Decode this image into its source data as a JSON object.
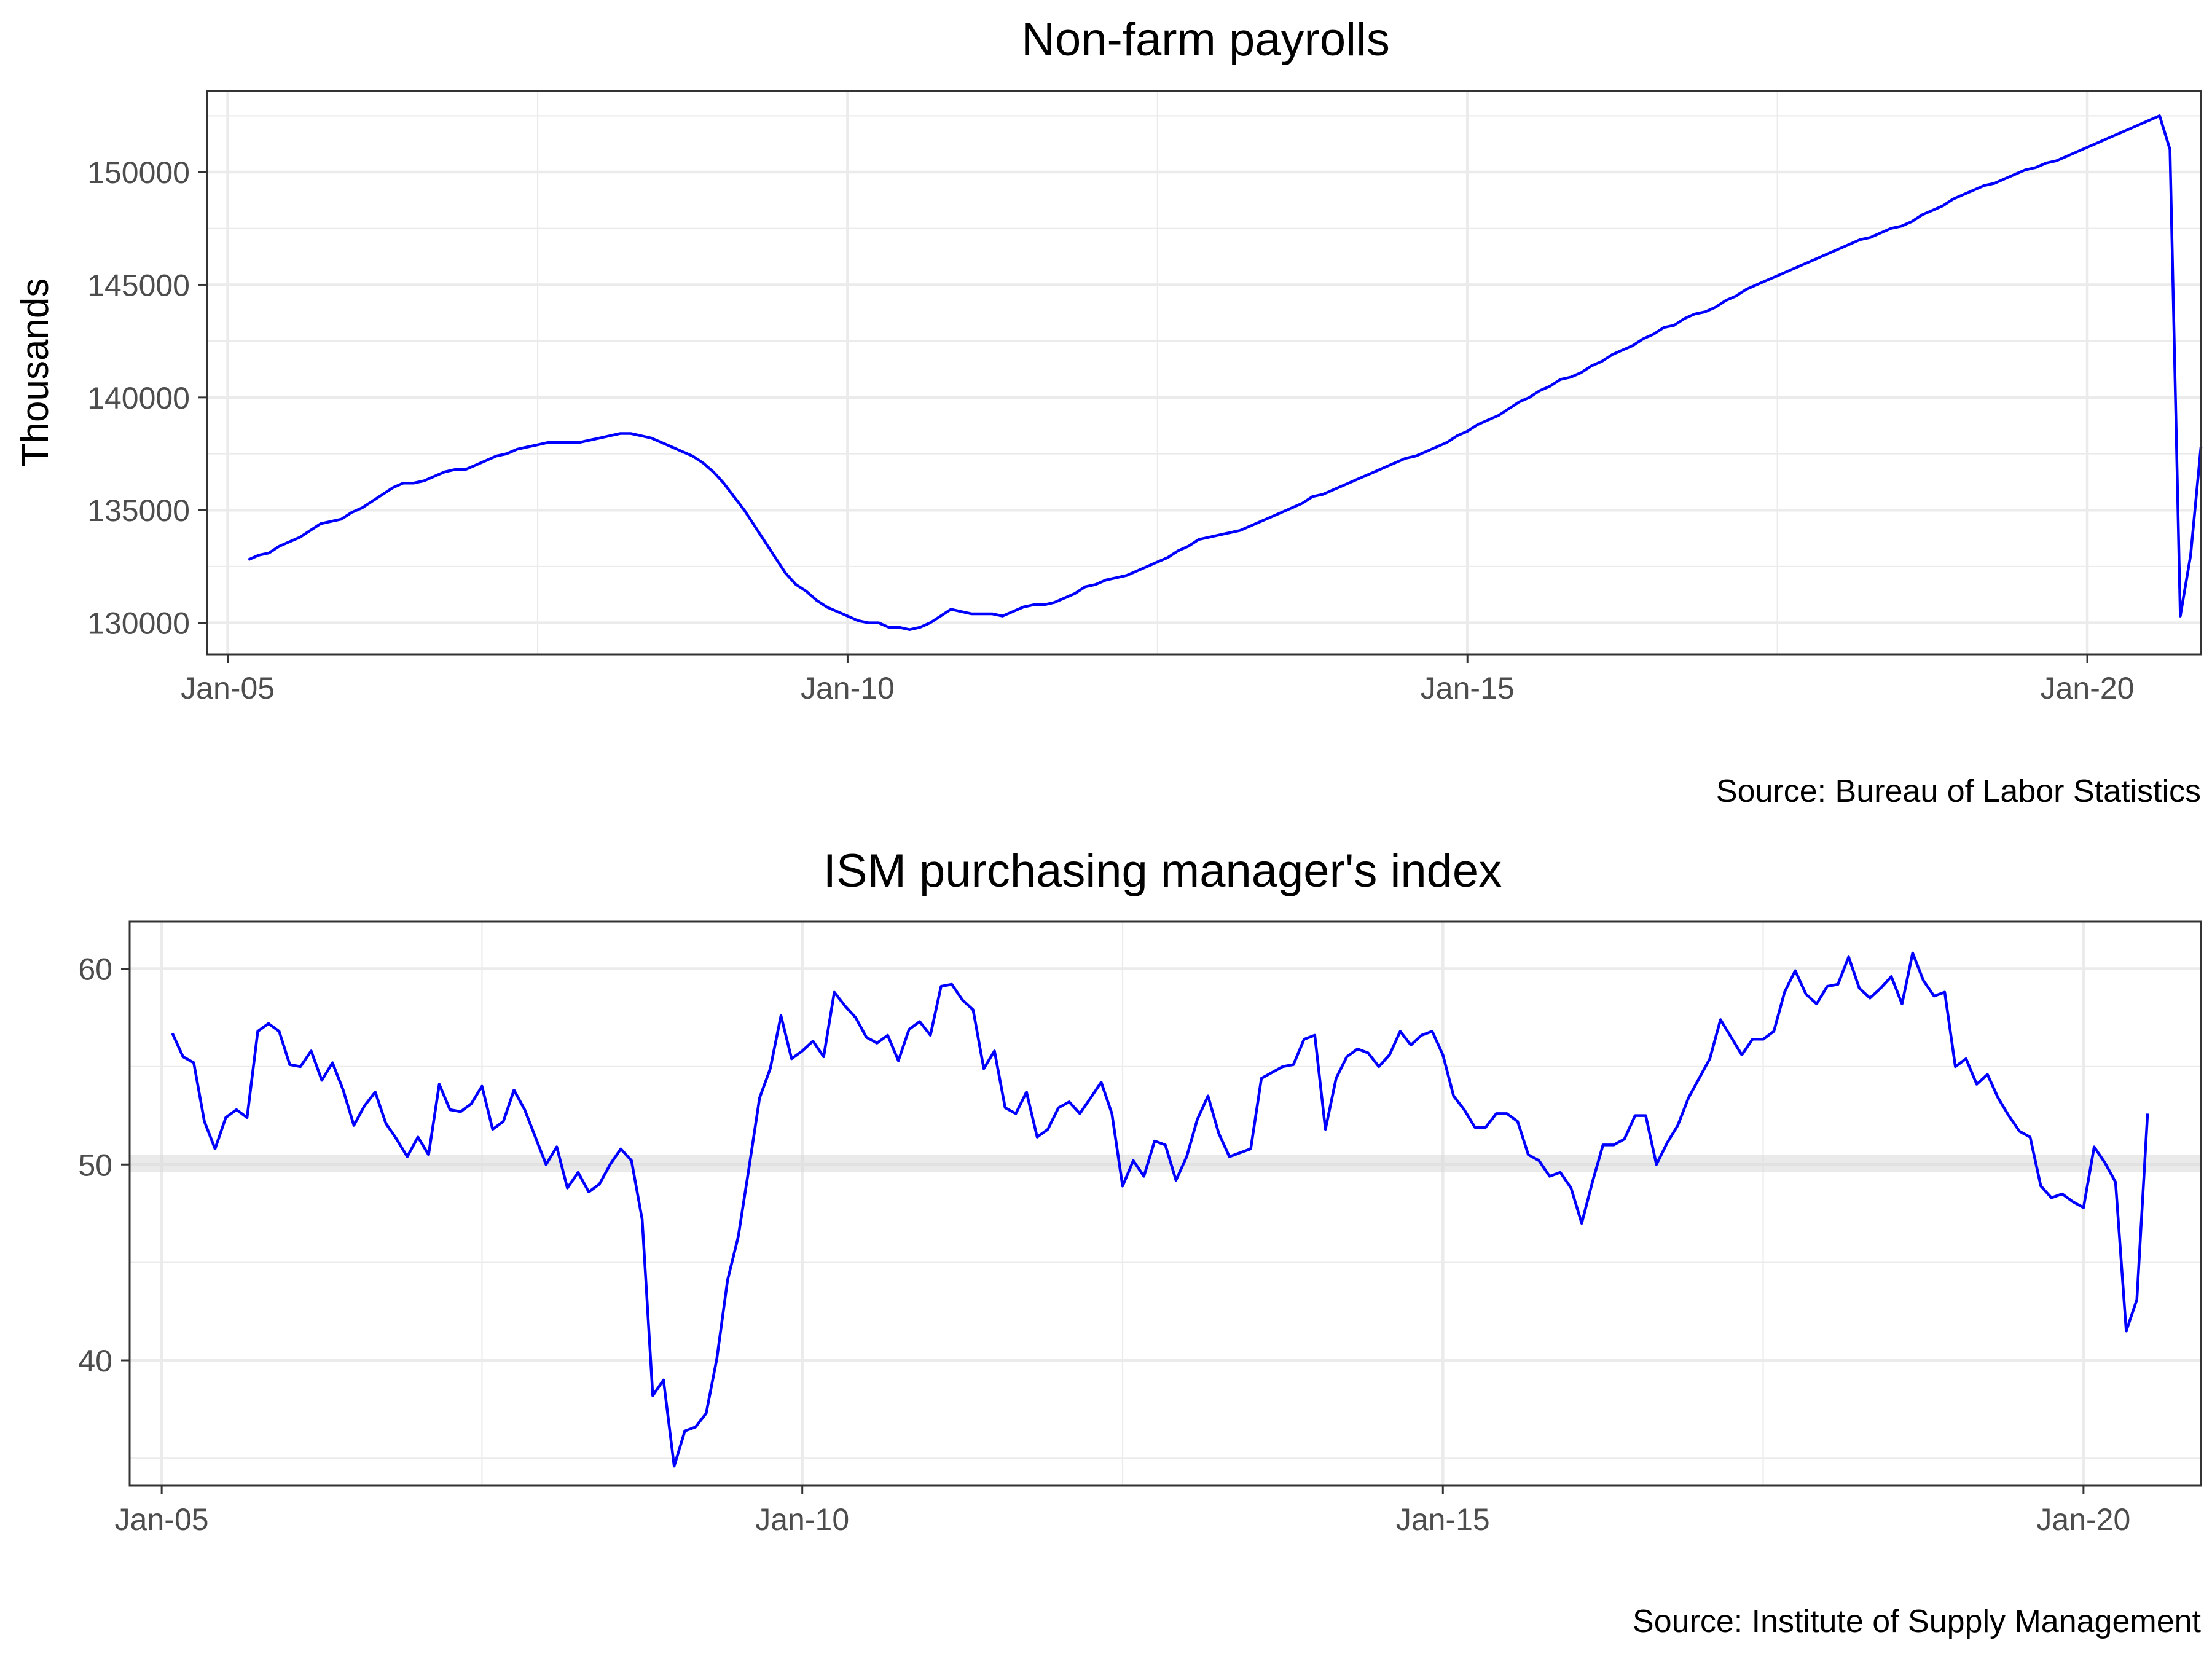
{
  "chart_data": [
    {
      "type": "line",
      "title": "Non-farm payrolls",
      "ylabel": "Thousands",
      "xlabel": "",
      "caption": "Source: Bureau of Labor Statistics",
      "x_start": "2005-03",
      "x_frequency": "monthly",
      "xlim": [
        "2004-11",
        "2020-12"
      ],
      "ylim": [
        128600,
        153600
      ],
      "xticks": [
        {
          "label": "Jan-05",
          "date": "2005-01"
        },
        {
          "label": "Jan-10",
          "date": "2010-01"
        },
        {
          "label": "Jan-15",
          "date": "2015-01"
        },
        {
          "label": "Jan-20",
          "date": "2020-01"
        }
      ],
      "yticks": [
        130000,
        135000,
        140000,
        145000,
        150000
      ],
      "grid": true,
      "color": "#0000ff",
      "series": [
        {
          "values": [
            132800,
            133000,
            133100,
            133400,
            133600,
            133800,
            134100,
            134400,
            134500,
            134600,
            134900,
            135100,
            135400,
            135700,
            136000,
            136200,
            136200,
            136300,
            136500,
            136700,
            136800,
            136800,
            137000,
            137200,
            137400,
            137500,
            137700,
            137800,
            137900,
            138000,
            138000,
            138000,
            138000,
            138100,
            138200,
            138300,
            138400,
            138400,
            138300,
            138200,
            138000,
            137800,
            137600,
            137400,
            137100,
            136700,
            136200,
            135600,
            135000,
            134300,
            133600,
            132900,
            132200,
            131700,
            131400,
            131000,
            130700,
            130500,
            130300,
            130100,
            130000,
            130000,
            129800,
            129800,
            129700,
            129800,
            130000,
            130300,
            130600,
            130500,
            130400,
            130400,
            130400,
            130300,
            130500,
            130700,
            130800,
            130800,
            130900,
            131100,
            131300,
            131600,
            131700,
            131900,
            132000,
            132100,
            132300,
            132500,
            132700,
            132900,
            133200,
            133400,
            133700,
            133800,
            133900,
            134000,
            134100,
            134300,
            134500,
            134700,
            134900,
            135100,
            135300,
            135600,
            135700,
            135900,
            136100,
            136300,
            136500,
            136700,
            136900,
            137100,
            137300,
            137400,
            137600,
            137800,
            138000,
            138300,
            138500,
            138800,
            139000,
            139200,
            139500,
            139800,
            140000,
            140300,
            140500,
            140800,
            140900,
            141100,
            141400,
            141600,
            141900,
            142100,
            142300,
            142600,
            142800,
            143100,
            143200,
            143500,
            143700,
            143800,
            144000,
            144300,
            144500,
            144800,
            145000,
            145200,
            145400,
            145600,
            145800,
            146000,
            146200,
            146400,
            146600,
            146800,
            147000,
            147100,
            147300,
            147500,
            147600,
            147800,
            148100,
            148300,
            148500,
            148800,
            149000,
            149200,
            149400,
            149500,
            149700,
            149900,
            150100,
            150200,
            150400,
            150500,
            150700,
            150900,
            151100,
            151300,
            151500,
            151700,
            151900,
            152100,
            152300,
            152500,
            151000,
            130300,
            133000,
            137800
          ]
        }
      ]
    },
    {
      "type": "line",
      "title": "ISM purchasing manager's index",
      "ylabel": "",
      "xlabel": "",
      "caption": "Source: Institute of Supply Management",
      "x_start": "2005-02",
      "x_frequency": "monthly",
      "xlim": [
        "2004-10",
        "2020-12"
      ],
      "ylim": [
        33.6,
        62.4
      ],
      "xticks": [
        {
          "label": "Jan-05",
          "date": "2005-01"
        },
        {
          "label": "Jan-10",
          "date": "2010-01"
        },
        {
          "label": "Jan-15",
          "date": "2015-01"
        },
        {
          "label": "Jan-20",
          "date": "2020-01"
        }
      ],
      "yticks": [
        40,
        50,
        60
      ],
      "grid": true,
      "reference_band": [
        49.8,
        50.3
      ],
      "color": "#0000ff",
      "series": [
        {
          "values": [
            56.7,
            55.5,
            55.2,
            52.2,
            50.8,
            52.4,
            52.8,
            52.4,
            56.8,
            57.2,
            56.8,
            55.1,
            55.0,
            55.8,
            54.3,
            55.2,
            53.8,
            52.0,
            53.0,
            53.7,
            52.1,
            51.3,
            50.4,
            51.4,
            50.5,
            54.1,
            52.8,
            52.7,
            53.1,
            54.0,
            51.8,
            52.2,
            53.8,
            52.8,
            51.4,
            50.0,
            50.9,
            48.8,
            49.6,
            48.6,
            49.0,
            50.0,
            50.8,
            50.2,
            47.2,
            38.2,
            39.0,
            34.6,
            36.4,
            36.6,
            37.3,
            40.1,
            44.1,
            46.3,
            49.8,
            53.4,
            54.9,
            57.6,
            55.4,
            55.8,
            56.3,
            55.5,
            58.8,
            58.1,
            57.5,
            56.5,
            56.2,
            56.6,
            55.3,
            56.9,
            57.3,
            56.6,
            59.1,
            59.2,
            58.4,
            57.9,
            54.9,
            55.8,
            52.9,
            52.6,
            53.7,
            51.4,
            51.8,
            52.9,
            53.2,
            52.6,
            53.4,
            54.2,
            52.6,
            48.9,
            50.2,
            49.4,
            51.2,
            51.0,
            49.2,
            50.4,
            52.3,
            53.5,
            51.6,
            50.4,
            50.6,
            50.8,
            54.4,
            54.7,
            55.0,
            55.1,
            56.4,
            56.6,
            51.8,
            54.4,
            55.5,
            55.9,
            55.7,
            55.0,
            55.6,
            56.8,
            56.1,
            56.6,
            56.8,
            55.6,
            53.5,
            52.8,
            51.9,
            51.9,
            52.6,
            52.6,
            52.2,
            50.5,
            50.2,
            49.4,
            49.6,
            48.8,
            47.0,
            49.1,
            51.0,
            51.0,
            51.3,
            52.5,
            52.5,
            50.0,
            51.1,
            52.0,
            53.4,
            54.4,
            55.4,
            57.4,
            56.5,
            55.6,
            56.4,
            56.4,
            56.8,
            58.8,
            59.9,
            58.7,
            58.2,
            59.1,
            59.2,
            60.6,
            59.0,
            58.5,
            59.0,
            59.6,
            58.2,
            60.8,
            59.4,
            58.6,
            58.8,
            55.0,
            55.4,
            54.1,
            54.6,
            53.4,
            52.5,
            51.7,
            51.4,
            48.9,
            48.3,
            48.5,
            48.1,
            47.8,
            50.9,
            50.1,
            49.1,
            41.5,
            43.1,
            52.6
          ]
        }
      ]
    }
  ]
}
